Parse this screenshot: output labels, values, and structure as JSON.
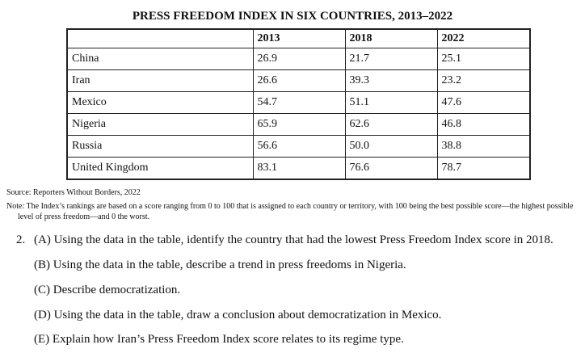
{
  "title": "PRESS FREEDOM INDEX IN SIX COUNTRIES, 2013–2022",
  "table": {
    "columns": [
      "",
      "2013",
      "2018",
      "2022"
    ],
    "rows": [
      {
        "country": "China",
        "v2013": "26.9",
        "v2018": "21.7",
        "v2022": "25.1"
      },
      {
        "country": "Iran",
        "v2013": "26.6",
        "v2018": "39.3",
        "v2022": "23.2"
      },
      {
        "country": "Mexico",
        "v2013": "54.7",
        "v2018": "51.1",
        "v2022": "47.6"
      },
      {
        "country": "Nigeria",
        "v2013": "65.9",
        "v2018": "62.6",
        "v2022": "46.8"
      },
      {
        "country": "Russia",
        "v2013": "56.6",
        "v2018": "50.0",
        "v2022": "38.8"
      },
      {
        "country": "United Kingdom",
        "v2013": "83.1",
        "v2018": "76.6",
        "v2022": "78.7"
      }
    ]
  },
  "source": "Source: Reporters Without Borders, 2022",
  "note": "Note: The Index’s rankings are based on a score ranging from 0 to 100 that is assigned to each country or territory, with 100 being the best possible score—the highest possible level of press freedom—and 0 the worst.",
  "question": {
    "number": "2.",
    "parts": [
      "(A) Using the data in the table, identify the country that had the lowest Press Freedom Index score in 2018.",
      "(B) Using the data in the table, describe a trend in press freedoms in Nigeria.",
      "(C) Describe democratization.",
      "(D) Using the data in the table, draw a conclusion about democratization in Mexico.",
      "(E) Explain how Iran’s Press Freedom Index score relates to its regime type."
    ]
  }
}
